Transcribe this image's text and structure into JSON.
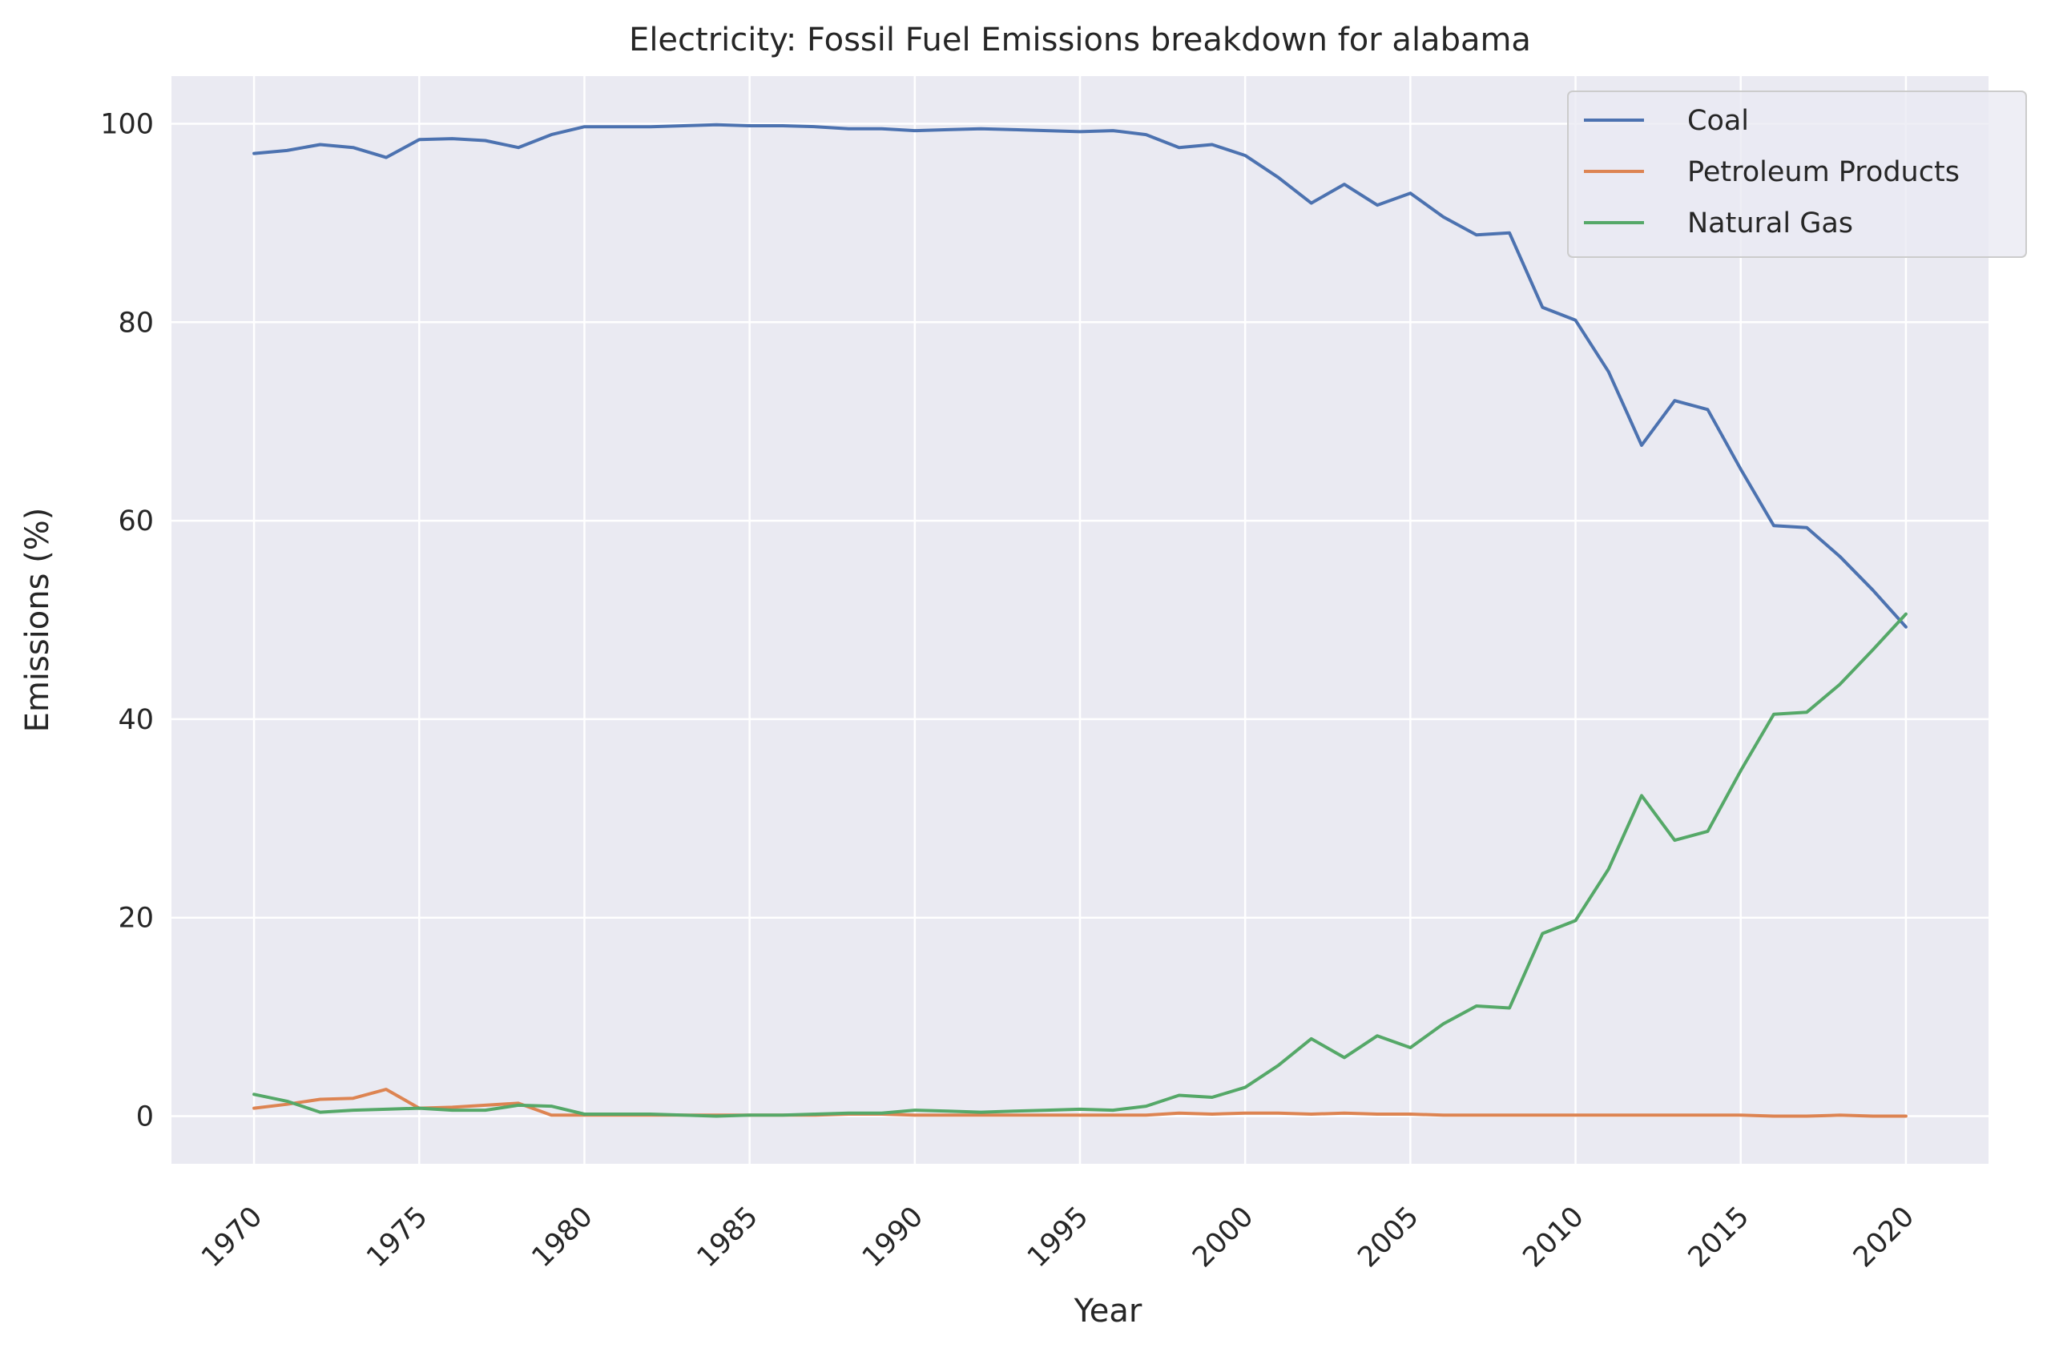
{
  "chart_data": {
    "type": "line",
    "title": "Electricity: Fossil Fuel Emissions breakdown for alabama",
    "xlabel": "Year",
    "ylabel": "Emissions (%)",
    "xlim": [
      1967.5,
      2022.5
    ],
    "ylim": [
      -4.8,
      104.8
    ],
    "xticks": [
      1970,
      1975,
      1980,
      1985,
      1990,
      1995,
      2000,
      2005,
      2010,
      2015,
      2020
    ],
    "yticks": [
      0,
      20,
      40,
      60,
      80,
      100
    ],
    "grid": true,
    "legend_position": "top-right",
    "x": [
      1970,
      1971,
      1972,
      1973,
      1974,
      1975,
      1976,
      1977,
      1978,
      1979,
      1980,
      1981,
      1982,
      1983,
      1984,
      1985,
      1986,
      1987,
      1988,
      1989,
      1990,
      1991,
      1992,
      1993,
      1994,
      1995,
      1996,
      1997,
      1998,
      1999,
      2000,
      2001,
      2002,
      2003,
      2004,
      2005,
      2006,
      2007,
      2008,
      2009,
      2010,
      2011,
      2012,
      2013,
      2014,
      2015,
      2016,
      2017,
      2018,
      2019,
      2020
    ],
    "series": [
      {
        "name": "Coal",
        "color": "#4c72b0",
        "values": [
          97.0,
          97.3,
          97.9,
          97.6,
          96.6,
          98.4,
          98.5,
          98.3,
          97.6,
          98.9,
          99.7,
          99.7,
          99.7,
          99.8,
          99.9,
          99.8,
          99.8,
          99.7,
          99.5,
          99.5,
          99.3,
          99.4,
          99.5,
          99.4,
          99.3,
          99.2,
          99.3,
          98.9,
          97.6,
          97.9,
          96.8,
          94.6,
          92.0,
          93.9,
          91.8,
          93.0,
          90.6,
          88.8,
          89.0,
          81.5,
          80.2,
          75.0,
          67.6,
          72.1,
          71.2,
          65.2,
          59.5,
          59.3,
          56.4,
          53.0,
          49.3
        ]
      },
      {
        "name": "Petroleum Products",
        "color": "#dd8452",
        "values": [
          0.8,
          1.2,
          1.7,
          1.8,
          2.7,
          0.8,
          0.9,
          1.1,
          1.3,
          0.1,
          0.1,
          0.1,
          0.1,
          0.1,
          0.1,
          0.1,
          0.1,
          0.1,
          0.2,
          0.2,
          0.1,
          0.1,
          0.1,
          0.1,
          0.1,
          0.1,
          0.1,
          0.1,
          0.3,
          0.2,
          0.3,
          0.3,
          0.2,
          0.3,
          0.2,
          0.2,
          0.1,
          0.1,
          0.1,
          0.1,
          0.1,
          0.1,
          0.1,
          0.1,
          0.1,
          0.1,
          0.0,
          0.0,
          0.1,
          0.0,
          0.0
        ]
      },
      {
        "name": "Natural Gas",
        "color": "#55a868",
        "values": [
          2.2,
          1.5,
          0.4,
          0.6,
          0.7,
          0.8,
          0.6,
          0.6,
          1.1,
          1.0,
          0.2,
          0.2,
          0.2,
          0.1,
          0.0,
          0.1,
          0.1,
          0.2,
          0.3,
          0.3,
          0.6,
          0.5,
          0.4,
          0.5,
          0.6,
          0.7,
          0.6,
          1.0,
          2.1,
          1.9,
          2.9,
          5.1,
          7.8,
          5.9,
          8.1,
          6.9,
          9.3,
          11.1,
          10.9,
          18.4,
          19.7,
          24.9,
          32.3,
          27.8,
          28.7,
          34.8,
          40.5,
          40.7,
          43.5,
          47.0,
          50.6
        ]
      }
    ]
  }
}
